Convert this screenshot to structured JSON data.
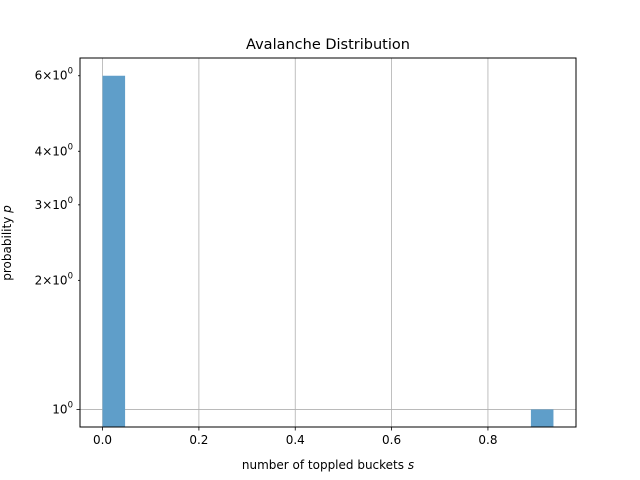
{
  "chart_data": {
    "type": "bar",
    "title": "Avalanche Distribution",
    "xlabel": "number of toppled buckets",
    "xlabel_var": "s",
    "ylabel": "probability",
    "ylabel_var": "p",
    "y_scale": "log",
    "xlim": [
      -0.0468,
      0.9828
    ],
    "ylim": [
      0.91,
      6.6
    ],
    "x_ticks": [
      0.0,
      0.2,
      0.4,
      0.6,
      0.8
    ],
    "x_tick_labels": [
      "0.0",
      "0.2",
      "0.4",
      "0.6",
      "0.8"
    ],
    "y_ticks": [
      1,
      2,
      3,
      4,
      6
    ],
    "y_tick_labels": [
      {
        "base": "10",
        "exp": "0",
        "coef": ""
      },
      {
        "base": "10",
        "exp": "0",
        "coef": "2"
      },
      {
        "base": "10",
        "exp": "0",
        "coef": "3"
      },
      {
        "base": "10",
        "exp": "0",
        "coef": "4"
      },
      {
        "base": "10",
        "exp": "0",
        "coef": "6"
      }
    ],
    "grid": true,
    "bar_color": "#5f9ec9",
    "bars": [
      {
        "x0": 0.0,
        "x1": 0.0468,
        "value": 6
      },
      {
        "x0": 0.8892,
        "x1": 0.936,
        "value": 1
      }
    ]
  }
}
